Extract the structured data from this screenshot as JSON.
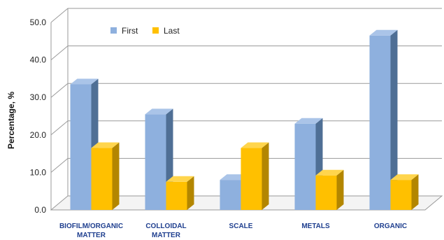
{
  "chart_data": {
    "type": "bar",
    "categories": [
      "BIOFILM/ORGANIC MATTER",
      "COLLOIDAL MATTER",
      "SCALE",
      "METALS",
      "ORGANIC"
    ],
    "category_lines": [
      [
        "BIOFILM/ORGANIC",
        "MATTER"
      ],
      [
        "COLLOIDAL",
        "MATTER"
      ],
      [
        "SCALE"
      ],
      [
        "METALS"
      ],
      [
        "ORGANIC"
      ]
    ],
    "series": [
      {
        "name": "First",
        "values": [
          33.5,
          25.5,
          8.0,
          23.0,
          46.5
        ],
        "color": "#8eb0de",
        "side": "#4f6f95",
        "top": "#aac4e8"
      },
      {
        "name": "Last",
        "values": [
          16.5,
          7.5,
          16.5,
          9.2,
          8.0
        ],
        "color": "#ffc000",
        "side": "#b38600",
        "top": "#ffd54d"
      }
    ],
    "ylabel": "Percentage, %",
    "ylim": [
      0,
      50
    ],
    "yticks": [
      "0.0",
      "10.0",
      "20.0",
      "30.0",
      "40.0",
      "50.0"
    ],
    "grid": true,
    "legend_position": "top-left"
  }
}
